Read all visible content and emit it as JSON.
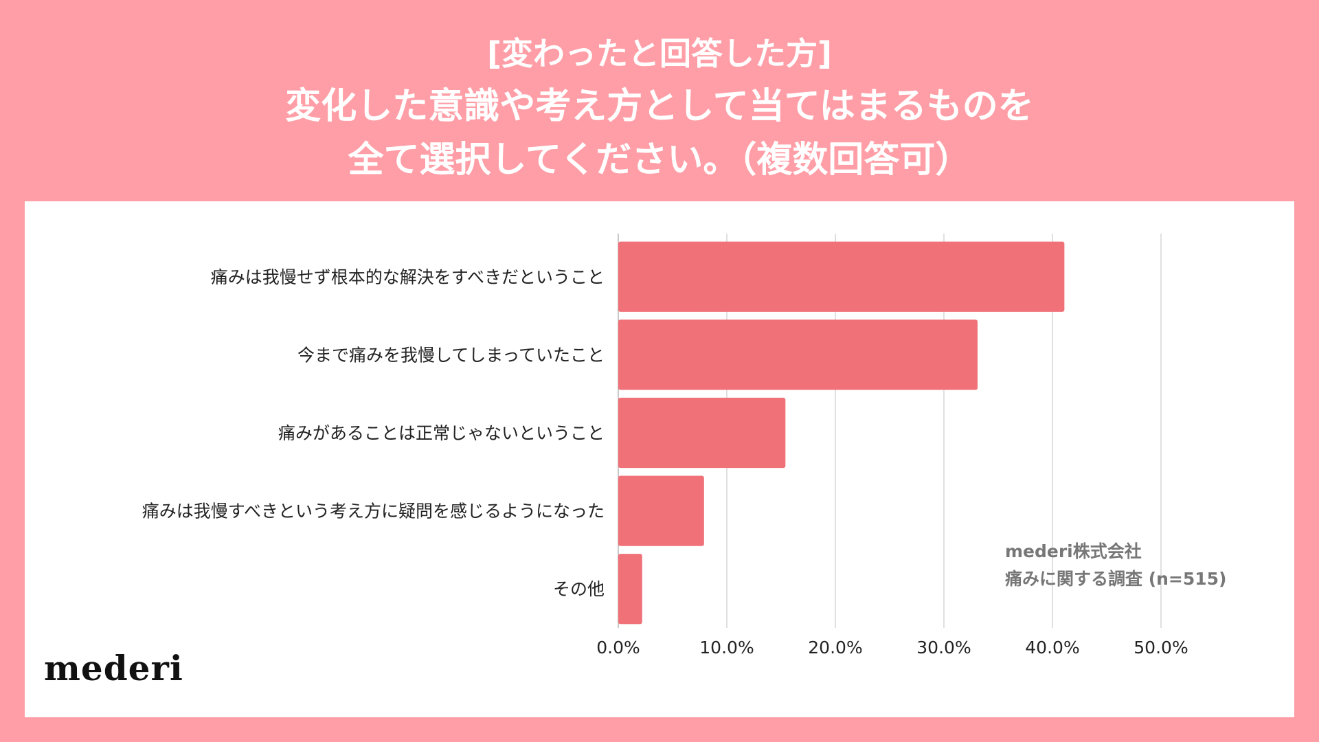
{
  "header": {
    "subtitle": "[変わったと回答した方]",
    "title_line1": "変化した意識や考え方として当てはまるものを",
    "title_line2": "全て選択してください。（複数回答可）"
  },
  "chart_data": {
    "type": "bar",
    "orientation": "horizontal",
    "categories": [
      "痛みは我慢せず根本的な解決をすべきだということ",
      "今まで痛みを我慢してしまっていたこと",
      "痛みがあることは正常じゃないということ",
      "痛みは我慢すべきという考え方に疑問を感じるようになった",
      "その他"
    ],
    "values": [
      41.1,
      33.1,
      15.4,
      7.9,
      2.2
    ],
    "xlim": [
      0,
      50
    ],
    "ticks": [
      "0.0%",
      "10.0%",
      "20.0%",
      "30.0%",
      "40.0%",
      "50.0%"
    ],
    "tick_values": [
      0,
      10,
      20,
      30,
      40,
      50
    ],
    "grid": true,
    "bar_color": "#F07178"
  },
  "source": {
    "line1": "mederi株式会社",
    "line2": "痛みに関する調査 (n=515)"
  },
  "logo": {
    "text": "mederi"
  }
}
